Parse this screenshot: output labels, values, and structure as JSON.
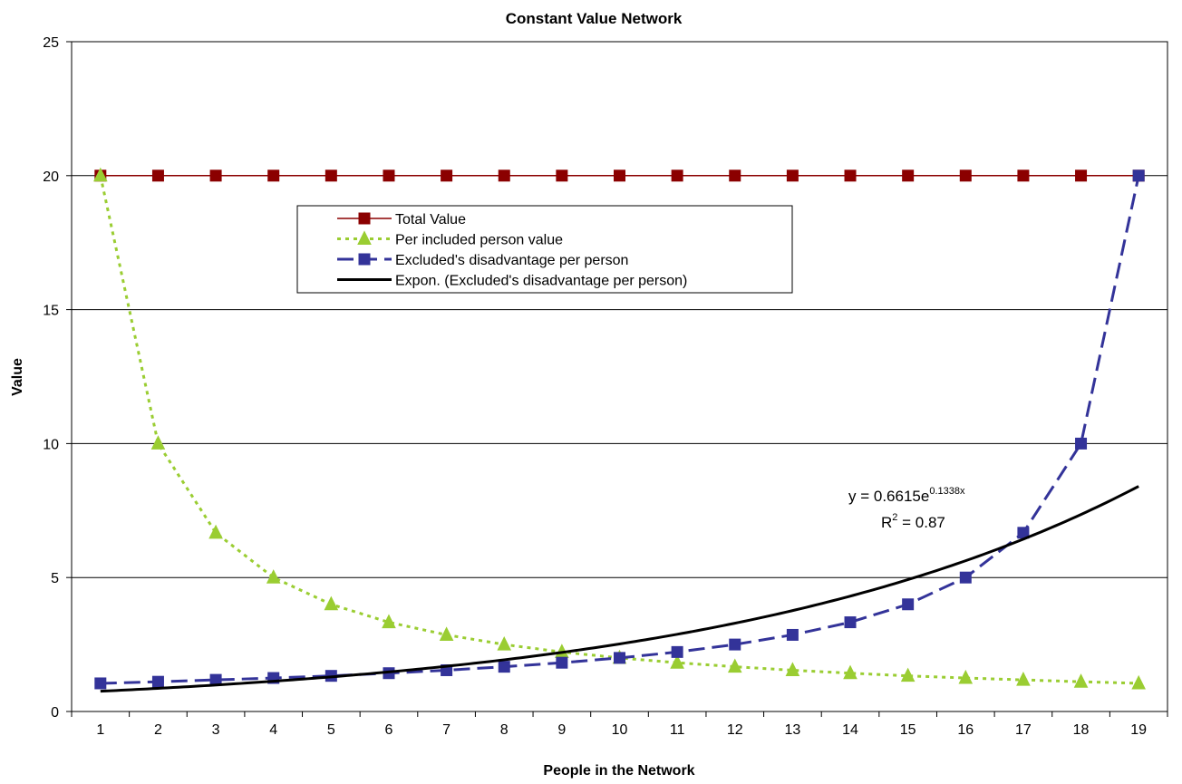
{
  "chart_data": {
    "type": "line",
    "title": "Constant Value Network",
    "xlabel": "People in the Network",
    "ylabel": "Value",
    "categories": [
      1,
      2,
      3,
      4,
      5,
      6,
      7,
      8,
      9,
      10,
      11,
      12,
      13,
      14,
      15,
      16,
      17,
      18,
      19
    ],
    "ylim": [
      0,
      25
    ],
    "yticks": [
      0,
      5,
      10,
      15,
      20,
      25
    ],
    "grid": "horizontal",
    "legend_position": "upper-center",
    "series": [
      {
        "name": "Total Value",
        "color": "#8b0000",
        "marker": "square",
        "dash": "solid",
        "values": [
          20,
          20,
          20,
          20,
          20,
          20,
          20,
          20,
          20,
          20,
          20,
          20,
          20,
          20,
          20,
          20,
          20,
          20,
          20
        ]
      },
      {
        "name": "Per included person value",
        "color": "#9acd32",
        "marker": "triangle",
        "dash": "dotted",
        "values": [
          20,
          10,
          6.67,
          5,
          4,
          3.33,
          2.86,
          2.5,
          2.22,
          2,
          1.82,
          1.67,
          1.54,
          1.43,
          1.33,
          1.25,
          1.18,
          1.11,
          1.05
        ]
      },
      {
        "name": "Excluded's disadvantage per person",
        "color": "#333399",
        "marker": "square",
        "dash": "dashed",
        "values": [
          1.05,
          1.11,
          1.18,
          1.25,
          1.33,
          1.43,
          1.54,
          1.67,
          1.82,
          2,
          2.22,
          2.5,
          2.86,
          3.33,
          4,
          5,
          6.67,
          10,
          20
        ]
      },
      {
        "name": "Expon. (Excluded's disadvantage per person)",
        "color": "#000000",
        "marker": "none",
        "dash": "solid",
        "trendline": {
          "a": 0.6615,
          "b": 0.1338
        },
        "values": [
          0.76,
          0.87,
          0.99,
          1.13,
          1.29,
          1.48,
          1.69,
          1.93,
          2.21,
          2.52,
          2.88,
          3.3,
          3.77,
          4.31,
          4.92,
          5.63,
          6.43,
          7.35,
          8.41
        ]
      }
    ],
    "annotation": {
      "equation_prefix": "y = 0.6615e",
      "equation_exp": "0.1338x",
      "r2_prefix": "R",
      "r2_exp": "2",
      "r2_suffix": " = 0.87"
    }
  }
}
